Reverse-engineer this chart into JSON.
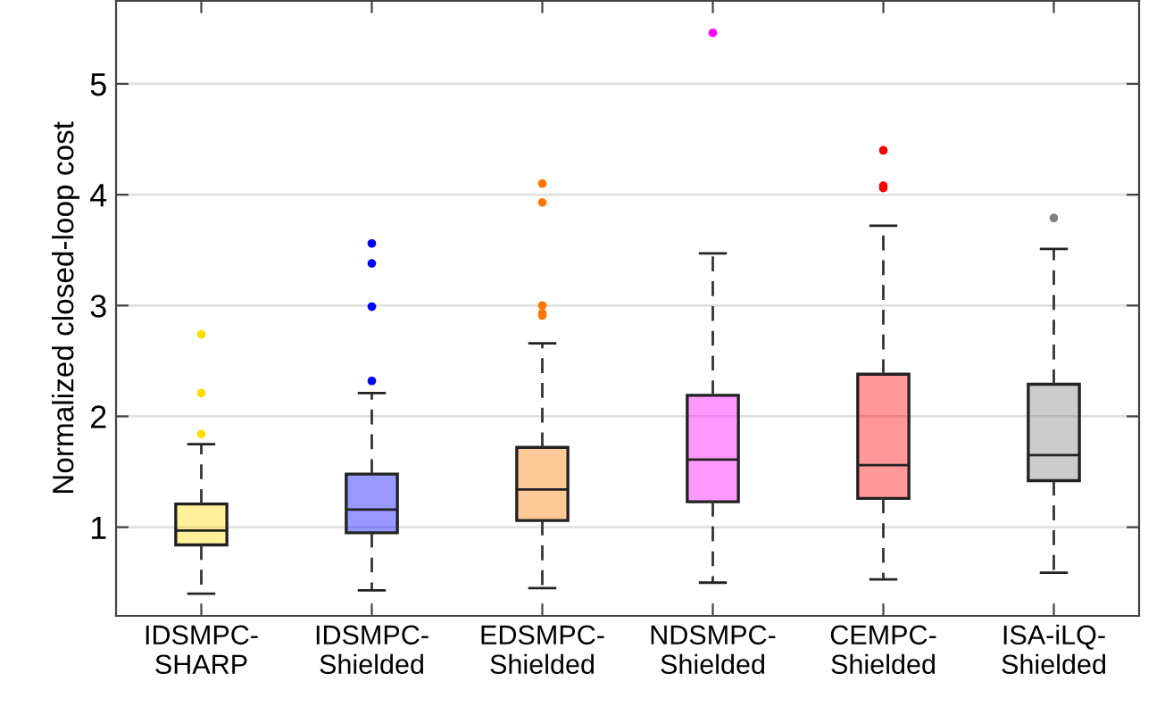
{
  "chart_data": {
    "type": "box",
    "ylabel": "Normalized closed-loop cost",
    "categories": [
      "IDSMPC-\nSHARP",
      "IDSMPC-\nShielded",
      "EDSMPC-\nShielded",
      "NDSMPC-\nShielded",
      "CEMPC-\nShielded",
      "ISA-iLQ-\nShielded"
    ],
    "colors": [
      "#ffdd00",
      "#0000ff",
      "#ff7700",
      "#ff00ff",
      "#ff0000",
      "#808080"
    ],
    "boxes": [
      {
        "low": 0.4,
        "q1": 0.84,
        "median": 0.97,
        "q3": 1.21,
        "high": 1.75,
        "outliers": [
          2.74,
          2.21,
          1.84
        ]
      },
      {
        "low": 0.43,
        "q1": 0.95,
        "median": 1.16,
        "q3": 1.48,
        "high": 2.21,
        "outliers": [
          3.56,
          3.38,
          2.99,
          2.32
        ]
      },
      {
        "low": 0.45,
        "q1": 1.06,
        "median": 1.34,
        "q3": 1.72,
        "high": 2.66,
        "outliers": [
          4.1,
          3.93,
          3.0,
          2.93,
          2.91
        ]
      },
      {
        "low": 0.5,
        "q1": 1.23,
        "median": 1.61,
        "q3": 2.19,
        "high": 3.47,
        "outliers": [
          5.46
        ]
      },
      {
        "low": 0.53,
        "q1": 1.26,
        "median": 1.56,
        "q3": 2.38,
        "high": 3.72,
        "outliers": [
          4.4,
          4.08,
          4.06
        ]
      },
      {
        "low": 0.59,
        "q1": 1.42,
        "median": 1.65,
        "q3": 2.29,
        "high": 3.51,
        "outliers": [
          3.79
        ]
      }
    ],
    "ylim": [
      0.2,
      5.75
    ],
    "yticks": [
      1,
      2,
      3,
      4,
      5
    ],
    "grid": "y",
    "line_style": "dashed"
  }
}
